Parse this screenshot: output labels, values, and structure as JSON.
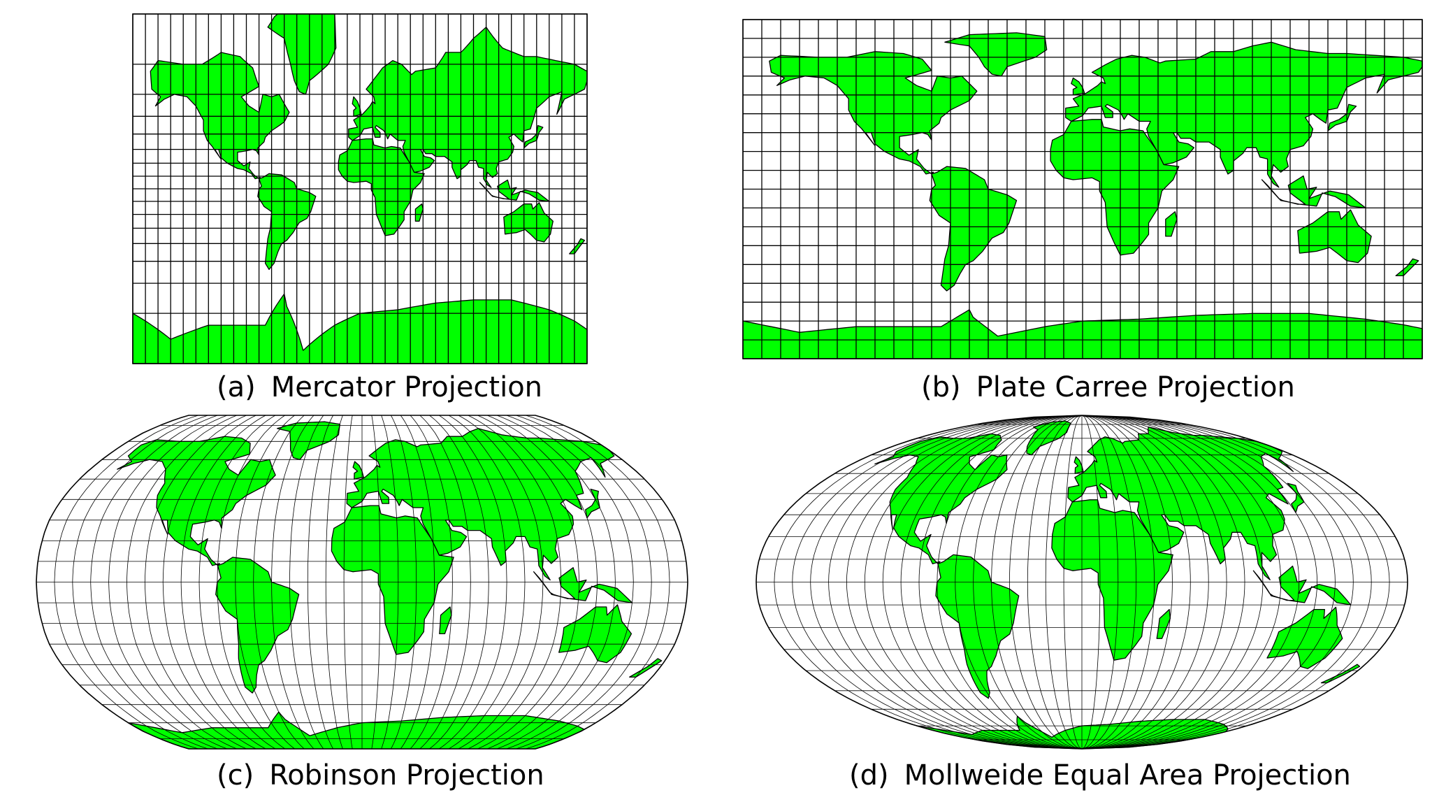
{
  "land_color": "#00ff00",
  "outline_color": "#000000",
  "panels": [
    {
      "tag": "(a)",
      "title": "Mercator Projection",
      "projection": "mercator",
      "graticule_step_deg": 10
    },
    {
      "tag": "(b)",
      "title": "Plate Carree Projection",
      "projection": "plate-carree",
      "graticule_step_deg": 10
    },
    {
      "tag": "(c)",
      "title": "Robinson Projection",
      "projection": "robinson",
      "graticule_step_deg": 10
    },
    {
      "tag": "(d)",
      "title": "Mollweide Equal Area Projection",
      "projection": "mollweide",
      "graticule_step_deg": 10
    }
  ]
}
